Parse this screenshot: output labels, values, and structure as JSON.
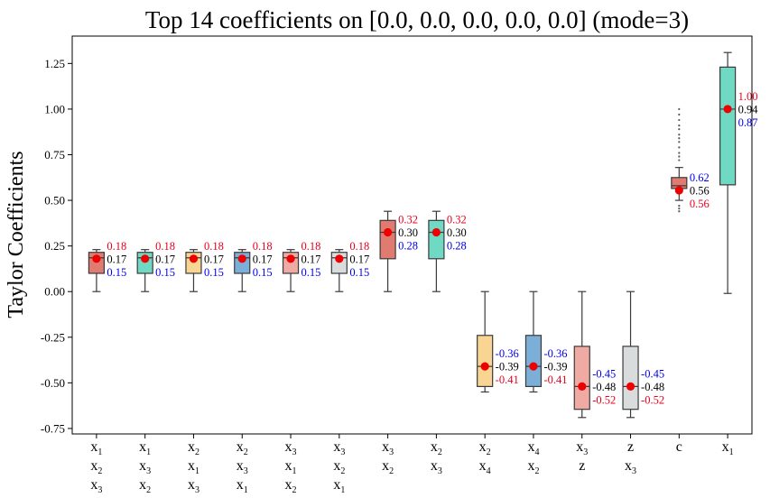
{
  "chart_data": {
    "type": "box",
    "title": "Top 14 coefficients on [0.0, 0.0, 0.0, 0.0, 0.0] (mode=3)",
    "xlabel": "",
    "ylabel": "Taylor Coefficients",
    "ylim": [
      -0.78,
      1.4
    ],
    "yticks": [
      "-0.75",
      "-0.50",
      "-0.25",
      "0.00",
      "0.25",
      "0.50",
      "0.75",
      "1.00",
      "1.25"
    ],
    "ytick_values": [
      -0.75,
      -0.5,
      -0.25,
      0.0,
      0.25,
      0.5,
      0.75,
      1.0,
      1.25
    ],
    "label_colors": {
      "upper": "#e8001c",
      "middle": "#000000",
      "lower": "#0000ee"
    },
    "boxes": [
      {
        "label": [
          [
            "x",
            "1"
          ],
          [
            "x",
            "2"
          ],
          [
            "x",
            "3"
          ]
        ],
        "color": "#e07b72",
        "whislo": 0.0,
        "q1": 0.1,
        "med": 0.185,
        "q3": 0.215,
        "whishi": 0.23,
        "mean": 0.18,
        "fliers": [],
        "labels": {
          "top": "0.18",
          "mid": "0.17",
          "bot": "0.15",
          "top_color": "#e8001c",
          "bot_color": "#0000ee"
        }
      },
      {
        "label": [
          [
            "x",
            "1"
          ],
          [
            "x",
            "3"
          ],
          [
            "x",
            "2"
          ]
        ],
        "color": "#6fd9c4",
        "whislo": 0.0,
        "q1": 0.1,
        "med": 0.185,
        "q3": 0.215,
        "whishi": 0.23,
        "mean": 0.18,
        "fliers": [],
        "labels": {
          "top": "0.18",
          "mid": "0.17",
          "bot": "0.15",
          "top_color": "#e8001c",
          "bot_color": "#0000ee"
        }
      },
      {
        "label": [
          [
            "x",
            "2"
          ],
          [
            "x",
            "1"
          ],
          [
            "x",
            "3"
          ]
        ],
        "color": "#f9d594",
        "whislo": 0.0,
        "q1": 0.1,
        "med": 0.185,
        "q3": 0.215,
        "whishi": 0.23,
        "mean": 0.18,
        "fliers": [],
        "labels": {
          "top": "0.18",
          "mid": "0.17",
          "bot": "0.15",
          "top_color": "#e8001c",
          "bot_color": "#0000ee"
        }
      },
      {
        "label": [
          [
            "x",
            "2"
          ],
          [
            "x",
            "3"
          ],
          [
            "x",
            "1"
          ]
        ],
        "color": "#7bafd8",
        "whislo": 0.0,
        "q1": 0.1,
        "med": 0.185,
        "q3": 0.215,
        "whishi": 0.23,
        "mean": 0.18,
        "fliers": [],
        "labels": {
          "top": "0.18",
          "mid": "0.17",
          "bot": "0.15",
          "top_color": "#e8001c",
          "bot_color": "#0000ee"
        }
      },
      {
        "label": [
          [
            "x",
            "3"
          ],
          [
            "x",
            "1"
          ],
          [
            "x",
            "2"
          ]
        ],
        "color": "#eeaaa3",
        "whislo": 0.0,
        "q1": 0.1,
        "med": 0.185,
        "q3": 0.215,
        "whishi": 0.23,
        "mean": 0.18,
        "fliers": [],
        "labels": {
          "top": "0.18",
          "mid": "0.17",
          "bot": "0.15",
          "top_color": "#e8001c",
          "bot_color": "#0000ee"
        }
      },
      {
        "label": [
          [
            "x",
            "3"
          ],
          [
            "x",
            "2"
          ],
          [
            "x",
            "1"
          ]
        ],
        "color": "#d8dcdc",
        "whislo": 0.0,
        "q1": 0.1,
        "med": 0.185,
        "q3": 0.215,
        "whishi": 0.23,
        "mean": 0.18,
        "fliers": [],
        "labels": {
          "top": "0.18",
          "mid": "0.17",
          "bot": "0.15",
          "top_color": "#e8001c",
          "bot_color": "#0000ee"
        }
      },
      {
        "label": [
          [
            "x",
            "3"
          ],
          [
            "x",
            "2"
          ]
        ],
        "color": "#e07b72",
        "whislo": 0.0,
        "q1": 0.18,
        "med": 0.325,
        "q3": 0.39,
        "whishi": 0.44,
        "mean": 0.325,
        "fliers": [],
        "labels": {
          "top": "0.32",
          "mid": "0.30",
          "bot": "0.28",
          "top_color": "#e8001c",
          "bot_color": "#0000ee"
        }
      },
      {
        "label": [
          [
            "x",
            "2"
          ],
          [
            "x",
            "3"
          ]
        ],
        "color": "#6fd9c4",
        "whislo": 0.0,
        "q1": 0.18,
        "med": 0.325,
        "q3": 0.39,
        "whishi": 0.44,
        "mean": 0.325,
        "fliers": [],
        "labels": {
          "top": "0.32",
          "mid": "0.30",
          "bot": "0.28",
          "top_color": "#e8001c",
          "bot_color": "#0000ee"
        }
      },
      {
        "label": [
          [
            "x",
            "2"
          ],
          [
            "x",
            "4"
          ]
        ],
        "color": "#f9d594",
        "whislo": -0.55,
        "q1": -0.52,
        "med": -0.41,
        "q3": -0.24,
        "whishi": 0.0,
        "mean": -0.41,
        "fliers": [],
        "labels": {
          "top": "-0.36",
          "mid": "-0.39",
          "bot": "-0.41",
          "top_color": "#0000ee",
          "bot_color": "#e8001c"
        }
      },
      {
        "label": [
          [
            "x",
            "4"
          ],
          [
            "x",
            "2"
          ]
        ],
        "color": "#7bafd8",
        "whislo": -0.55,
        "q1": -0.52,
        "med": -0.41,
        "q3": -0.24,
        "whishi": 0.0,
        "mean": -0.41,
        "fliers": [],
        "labels": {
          "top": "-0.36",
          "mid": "-0.39",
          "bot": "-0.41",
          "top_color": "#0000ee",
          "bot_color": "#e8001c"
        }
      },
      {
        "label": [
          [
            "x",
            "3"
          ],
          [
            "z",
            ""
          ]
        ],
        "color": "#eeaaa3",
        "whislo": -0.69,
        "q1": -0.645,
        "med": -0.52,
        "q3": -0.3,
        "whishi": 0.0,
        "mean": -0.52,
        "fliers": [],
        "labels": {
          "top": "-0.45",
          "mid": "-0.48",
          "bot": "-0.52",
          "top_color": "#0000ee",
          "bot_color": "#e8001c"
        }
      },
      {
        "label": [
          [
            "z",
            ""
          ],
          [
            "x",
            "3"
          ]
        ],
        "color": "#d8dcdc",
        "whislo": -0.69,
        "q1": -0.645,
        "med": -0.52,
        "q3": -0.3,
        "whishi": 0.0,
        "mean": -0.52,
        "fliers": [],
        "labels": {
          "top": "-0.45",
          "mid": "-0.48",
          "bot": "-0.52",
          "top_color": "#0000ee",
          "bot_color": "#e8001c"
        }
      },
      {
        "label": [
          [
            "c",
            ""
          ]
        ],
        "color": "#e07b72",
        "whislo": 0.5,
        "q1": 0.565,
        "med": 0.58,
        "q3": 0.625,
        "whishi": 0.68,
        "mean": 0.555,
        "fliers": [
          0.44,
          0.455,
          0.47,
          0.72,
          0.74,
          0.76,
          0.79,
          0.82,
          0.84,
          0.86,
          0.89,
          0.91,
          0.94,
          0.97,
          1.0
        ],
        "labels": {
          "top": "0.62",
          "mid": "0.56",
          "bot": "0.56",
          "top_color": "#0000ee",
          "bot_color": "#e8001c"
        }
      },
      {
        "label": [
          [
            "x",
            "1"
          ]
        ],
        "color": "#6fd9c4",
        "whislo": -0.01,
        "q1": 0.585,
        "med": 1.0,
        "q3": 1.23,
        "whishi": 1.31,
        "mean": 1.0,
        "fliers": [],
        "labels": {
          "top": "1.00",
          "mid": "0.94",
          "bot": "0.87",
          "top_color": "#e8001c",
          "bot_color": "#0000ee"
        }
      }
    ]
  }
}
